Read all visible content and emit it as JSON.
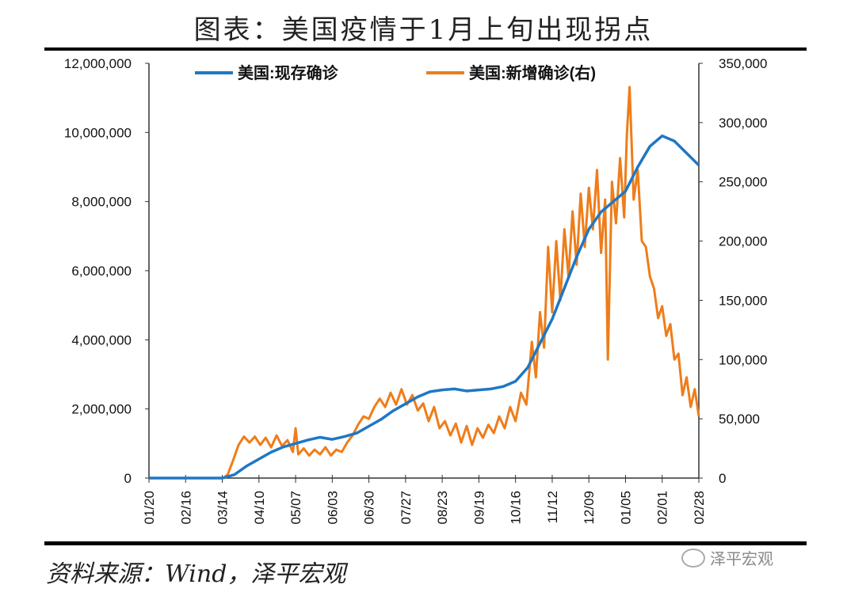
{
  "title": "图表：美国疫情于1月上旬出现拐点",
  "source": "资料来源：Wind，泽平宏观",
  "watermark": "泽平宏观",
  "chart_data": {
    "type": "line",
    "title": "图表：美国疫情于1月上旬出现拐点",
    "x_start": "2020-01-20",
    "x_end": "2021-02-28",
    "x_ticks": [
      "01/20",
      "02/16",
      "03/14",
      "04/10",
      "05/07",
      "06/03",
      "06/30",
      "07/27",
      "08/23",
      "09/19",
      "10/16",
      "11/12",
      "12/09",
      "01/05",
      "02/01",
      "02/28"
    ],
    "x_tick_step_days": 27,
    "y_left": {
      "lim": [
        0,
        12000000
      ],
      "ticks": [
        "0",
        "2,000,000",
        "4,000,000",
        "6,000,000",
        "8,000,000",
        "10,000,000",
        "12,000,000"
      ]
    },
    "y_right": {
      "lim": [
        0,
        350000
      ],
      "ticks": [
        "0",
        "50,000",
        "100,000",
        "150,000",
        "200,000",
        "250,000",
        "300,000",
        "350,000"
      ]
    },
    "legend": "top",
    "series": [
      {
        "name": "美国:现存确诊",
        "axis": "left",
        "color": "#1f77c4",
        "x_days": [
          0,
          9,
          18,
          27,
          36,
          45,
          54,
          63,
          72,
          81,
          90,
          99,
          108,
          117,
          126,
          135,
          144,
          153,
          162,
          171,
          180,
          189,
          198,
          207,
          216,
          225,
          234,
          243,
          252,
          261,
          270,
          279,
          288,
          297,
          306,
          315,
          324,
          333,
          342,
          351,
          360,
          369,
          378,
          387,
          396,
          405
        ],
        "values": [
          0,
          0,
          0,
          0,
          0,
          0,
          0,
          100000,
          350000,
          550000,
          750000,
          900000,
          1000000,
          1100000,
          1180000,
          1120000,
          1200000,
          1300000,
          1500000,
          1700000,
          1950000,
          2150000,
          2350000,
          2500000,
          2550000,
          2580000,
          2520000,
          2550000,
          2580000,
          2650000,
          2800000,
          3200000,
          3900000,
          4600000,
          5500000,
          6400000,
          7200000,
          7700000,
          8000000,
          8300000,
          9000000,
          9600000,
          9900000,
          9750000,
          9400000,
          9050000
        ]
      },
      {
        "name": "美国:新增确诊(右)",
        "axis": "right",
        "color": "#ee7d1a",
        "points": [
          [
            0,
            0
          ],
          [
            55,
            0
          ],
          [
            58,
            3000
          ],
          [
            62,
            15000
          ],
          [
            66,
            28000
          ],
          [
            70,
            35000
          ],
          [
            74,
            30000
          ],
          [
            78,
            35000
          ],
          [
            82,
            28000
          ],
          [
            86,
            34000
          ],
          [
            90,
            26000
          ],
          [
            94,
            36000
          ],
          [
            98,
            27000
          ],
          [
            102,
            32000
          ],
          [
            106,
            22000
          ],
          [
            108,
            42000
          ],
          [
            110,
            20000
          ],
          [
            114,
            25000
          ],
          [
            118,
            19000
          ],
          [
            122,
            24000
          ],
          [
            126,
            20000
          ],
          [
            130,
            26000
          ],
          [
            134,
            19000
          ],
          [
            138,
            24000
          ],
          [
            142,
            22000
          ],
          [
            146,
            30000
          ],
          [
            150,
            36000
          ],
          [
            154,
            45000
          ],
          [
            158,
            52000
          ],
          [
            162,
            50000
          ],
          [
            166,
            60000
          ],
          [
            170,
            67000
          ],
          [
            174,
            60000
          ],
          [
            178,
            72000
          ],
          [
            182,
            62000
          ],
          [
            186,
            75000
          ],
          [
            190,
            62000
          ],
          [
            194,
            70000
          ],
          [
            198,
            57000
          ],
          [
            202,
            63000
          ],
          [
            206,
            48000
          ],
          [
            210,
            60000
          ],
          [
            214,
            42000
          ],
          [
            218,
            48000
          ],
          [
            222,
            36000
          ],
          [
            226,
            46000
          ],
          [
            230,
            30000
          ],
          [
            234,
            44000
          ],
          [
            238,
            28000
          ],
          [
            242,
            42000
          ],
          [
            246,
            34000
          ],
          [
            250,
            45000
          ],
          [
            254,
            38000
          ],
          [
            258,
            52000
          ],
          [
            262,
            42000
          ],
          [
            266,
            60000
          ],
          [
            270,
            48000
          ],
          [
            274,
            72000
          ],
          [
            278,
            62000
          ],
          [
            282,
            115000
          ],
          [
            285,
            85000
          ],
          [
            288,
            140000
          ],
          [
            291,
            110000
          ],
          [
            294,
            195000
          ],
          [
            297,
            140000
          ],
          [
            300,
            200000
          ],
          [
            303,
            150000
          ],
          [
            306,
            210000
          ],
          [
            309,
            170000
          ],
          [
            312,
            225000
          ],
          [
            315,
            180000
          ],
          [
            318,
            240000
          ],
          [
            321,
            195000
          ],
          [
            324,
            245000
          ],
          [
            327,
            210000
          ],
          [
            330,
            260000
          ],
          [
            333,
            190000
          ],
          [
            336,
            235000
          ],
          [
            338,
            100000
          ],
          [
            341,
            250000
          ],
          [
            344,
            215000
          ],
          [
            347,
            270000
          ],
          [
            350,
            220000
          ],
          [
            352,
            290000
          ],
          [
            354,
            330000
          ],
          [
            357,
            235000
          ],
          [
            360,
            260000
          ],
          [
            363,
            200000
          ],
          [
            366,
            195000
          ],
          [
            369,
            170000
          ],
          [
            372,
            160000
          ],
          [
            375,
            135000
          ],
          [
            378,
            145000
          ],
          [
            381,
            120000
          ],
          [
            384,
            130000
          ],
          [
            387,
            100000
          ],
          [
            390,
            105000
          ],
          [
            393,
            70000
          ],
          [
            396,
            85000
          ],
          [
            399,
            60000
          ],
          [
            402,
            75000
          ],
          [
            405,
            52000
          ]
        ]
      }
    ]
  }
}
